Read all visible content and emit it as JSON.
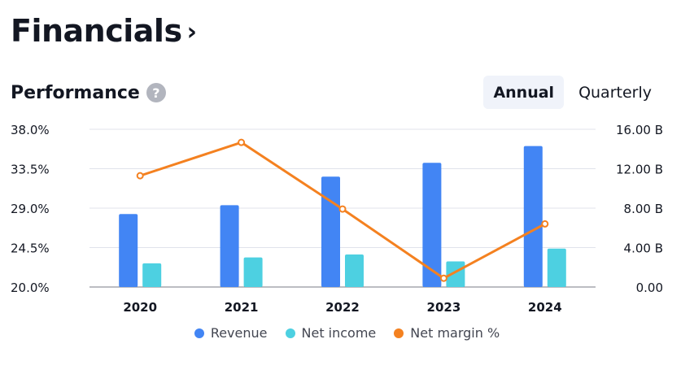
{
  "header": {
    "title": "Financials",
    "chevron": "›"
  },
  "section": {
    "title": "Performance",
    "help": "?"
  },
  "period_toggle": {
    "annual": "Annual",
    "quarterly": "Quarterly",
    "selected": "Annual"
  },
  "colors": {
    "revenue": "#4285f4",
    "net_income": "#4dd0e1",
    "net_margin": "#f48120",
    "grid": "#e0e3eb",
    "axis_text": "#131722"
  },
  "chart_data": {
    "type": "bar",
    "categories": [
      "2020",
      "2021",
      "2022",
      "2023",
      "2024"
    ],
    "series": [
      {
        "name": "Revenue",
        "axis": "right",
        "values": [
          7.4,
          8.3,
          11.2,
          12.6,
          14.3
        ]
      },
      {
        "name": "Net income",
        "axis": "right",
        "values": [
          2.4,
          3.0,
          3.3,
          2.6,
          3.9
        ]
      },
      {
        "name": "Net margin %",
        "axis": "left",
        "type": "line",
        "values": [
          32.7,
          36.5,
          28.9,
          21.0,
          27.2
        ]
      }
    ],
    "left_axis": {
      "ylim": [
        20,
        38
      ],
      "ticks": [
        "20.0%",
        "24.5%",
        "29.0%",
        "33.5%",
        "38.0%"
      ]
    },
    "right_axis": {
      "ylim": [
        0,
        16
      ],
      "ticks": [
        "0.00",
        "4.00 B",
        "8.00 B",
        "12.00 B",
        "16.00 B"
      ]
    },
    "legend_position": "bottom",
    "grid": true
  }
}
